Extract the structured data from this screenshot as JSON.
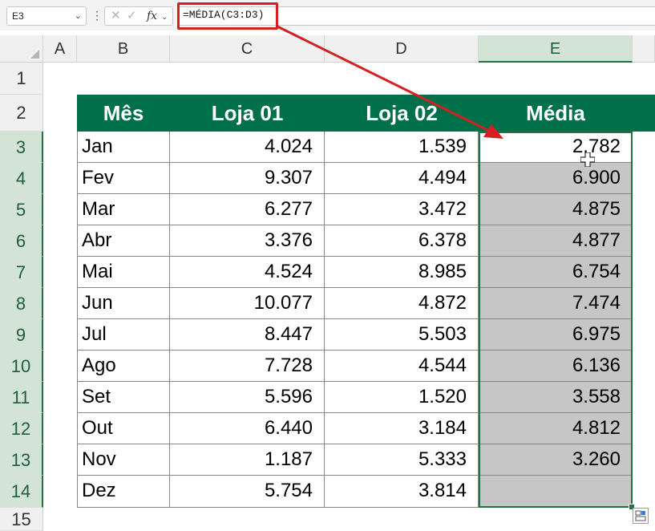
{
  "formula_bar": {
    "name_box": "E3",
    "formula": "=MÉDIA(C3:D3)",
    "icons": [
      "chevron-down-icon",
      "more-vertical-icon",
      "cancel-x-icon",
      "confirm-check-icon",
      "fx-icon"
    ],
    "fx_label": "fx"
  },
  "columns": [
    {
      "key": "A",
      "label": "A"
    },
    {
      "key": "B",
      "label": "B"
    },
    {
      "key": "C",
      "label": "C"
    },
    {
      "key": "D",
      "label": "D"
    },
    {
      "key": "E",
      "label": "E"
    }
  ],
  "rows": [
    "1",
    "2",
    "3",
    "4",
    "5",
    "6",
    "7",
    "8",
    "9",
    "10",
    "11",
    "12",
    "13",
    "14",
    "15"
  ],
  "table": {
    "headers": [
      "Mês",
      "Loja 01",
      "Loja 02",
      "Média"
    ],
    "data": [
      {
        "mes": "Jan",
        "loja01": "4.024",
        "loja02": "1.539",
        "media": "2.782"
      },
      {
        "mes": "Fev",
        "loja01": "9.307",
        "loja02": "4.494",
        "media": "6.900"
      },
      {
        "mes": "Mar",
        "loja01": "6.277",
        "loja02": "3.472",
        "media": "4.875"
      },
      {
        "mes": "Abr",
        "loja01": "3.376",
        "loja02": "6.378",
        "media": "4.877"
      },
      {
        "mes": "Mai",
        "loja01": "4.524",
        "loja02": "8.985",
        "media": "6.754"
      },
      {
        "mes": "Jun",
        "loja01": "10.077",
        "loja02": "4.872",
        "media": "7.474"
      },
      {
        "mes": "Jul",
        "loja01": "8.447",
        "loja02": "5.503",
        "media": "6.975"
      },
      {
        "mes": "Ago",
        "loja01": "7.728",
        "loja02": "4.544",
        "media": "6.136"
      },
      {
        "mes": "Set",
        "loja01": "5.596",
        "loja02": "1.520",
        "media": "3.558"
      },
      {
        "mes": "Out",
        "loja01": "6.440",
        "loja02": "3.184",
        "media": "4.812"
      },
      {
        "mes": "Nov",
        "loja01": "1.187",
        "loja02": "5.333",
        "media": "3.260"
      },
      {
        "mes": "Dez",
        "loja01": "5.754",
        "loja02": "3.814",
        "media": ""
      }
    ]
  },
  "selection": {
    "active_cell": "E3",
    "range": "E3:E14",
    "selected_column": "E",
    "selected_rows": [
      "3",
      "4",
      "5",
      "6",
      "7",
      "8",
      "9",
      "10",
      "11",
      "12",
      "13",
      "14"
    ]
  },
  "colors": {
    "header_fill": "#00704a",
    "header_text": "#ffffff",
    "selection_fill": "#c6c6c6",
    "selection_border": "#217346",
    "annotation_red": "#d42020"
  },
  "annotations": {
    "highlight_icon": "red-box-highlight",
    "arrow_icon": "red-arrow-icon",
    "cursor_icon": "fill-cross-cursor-icon",
    "quick_analysis_icon": "quick-analysis-icon"
  }
}
